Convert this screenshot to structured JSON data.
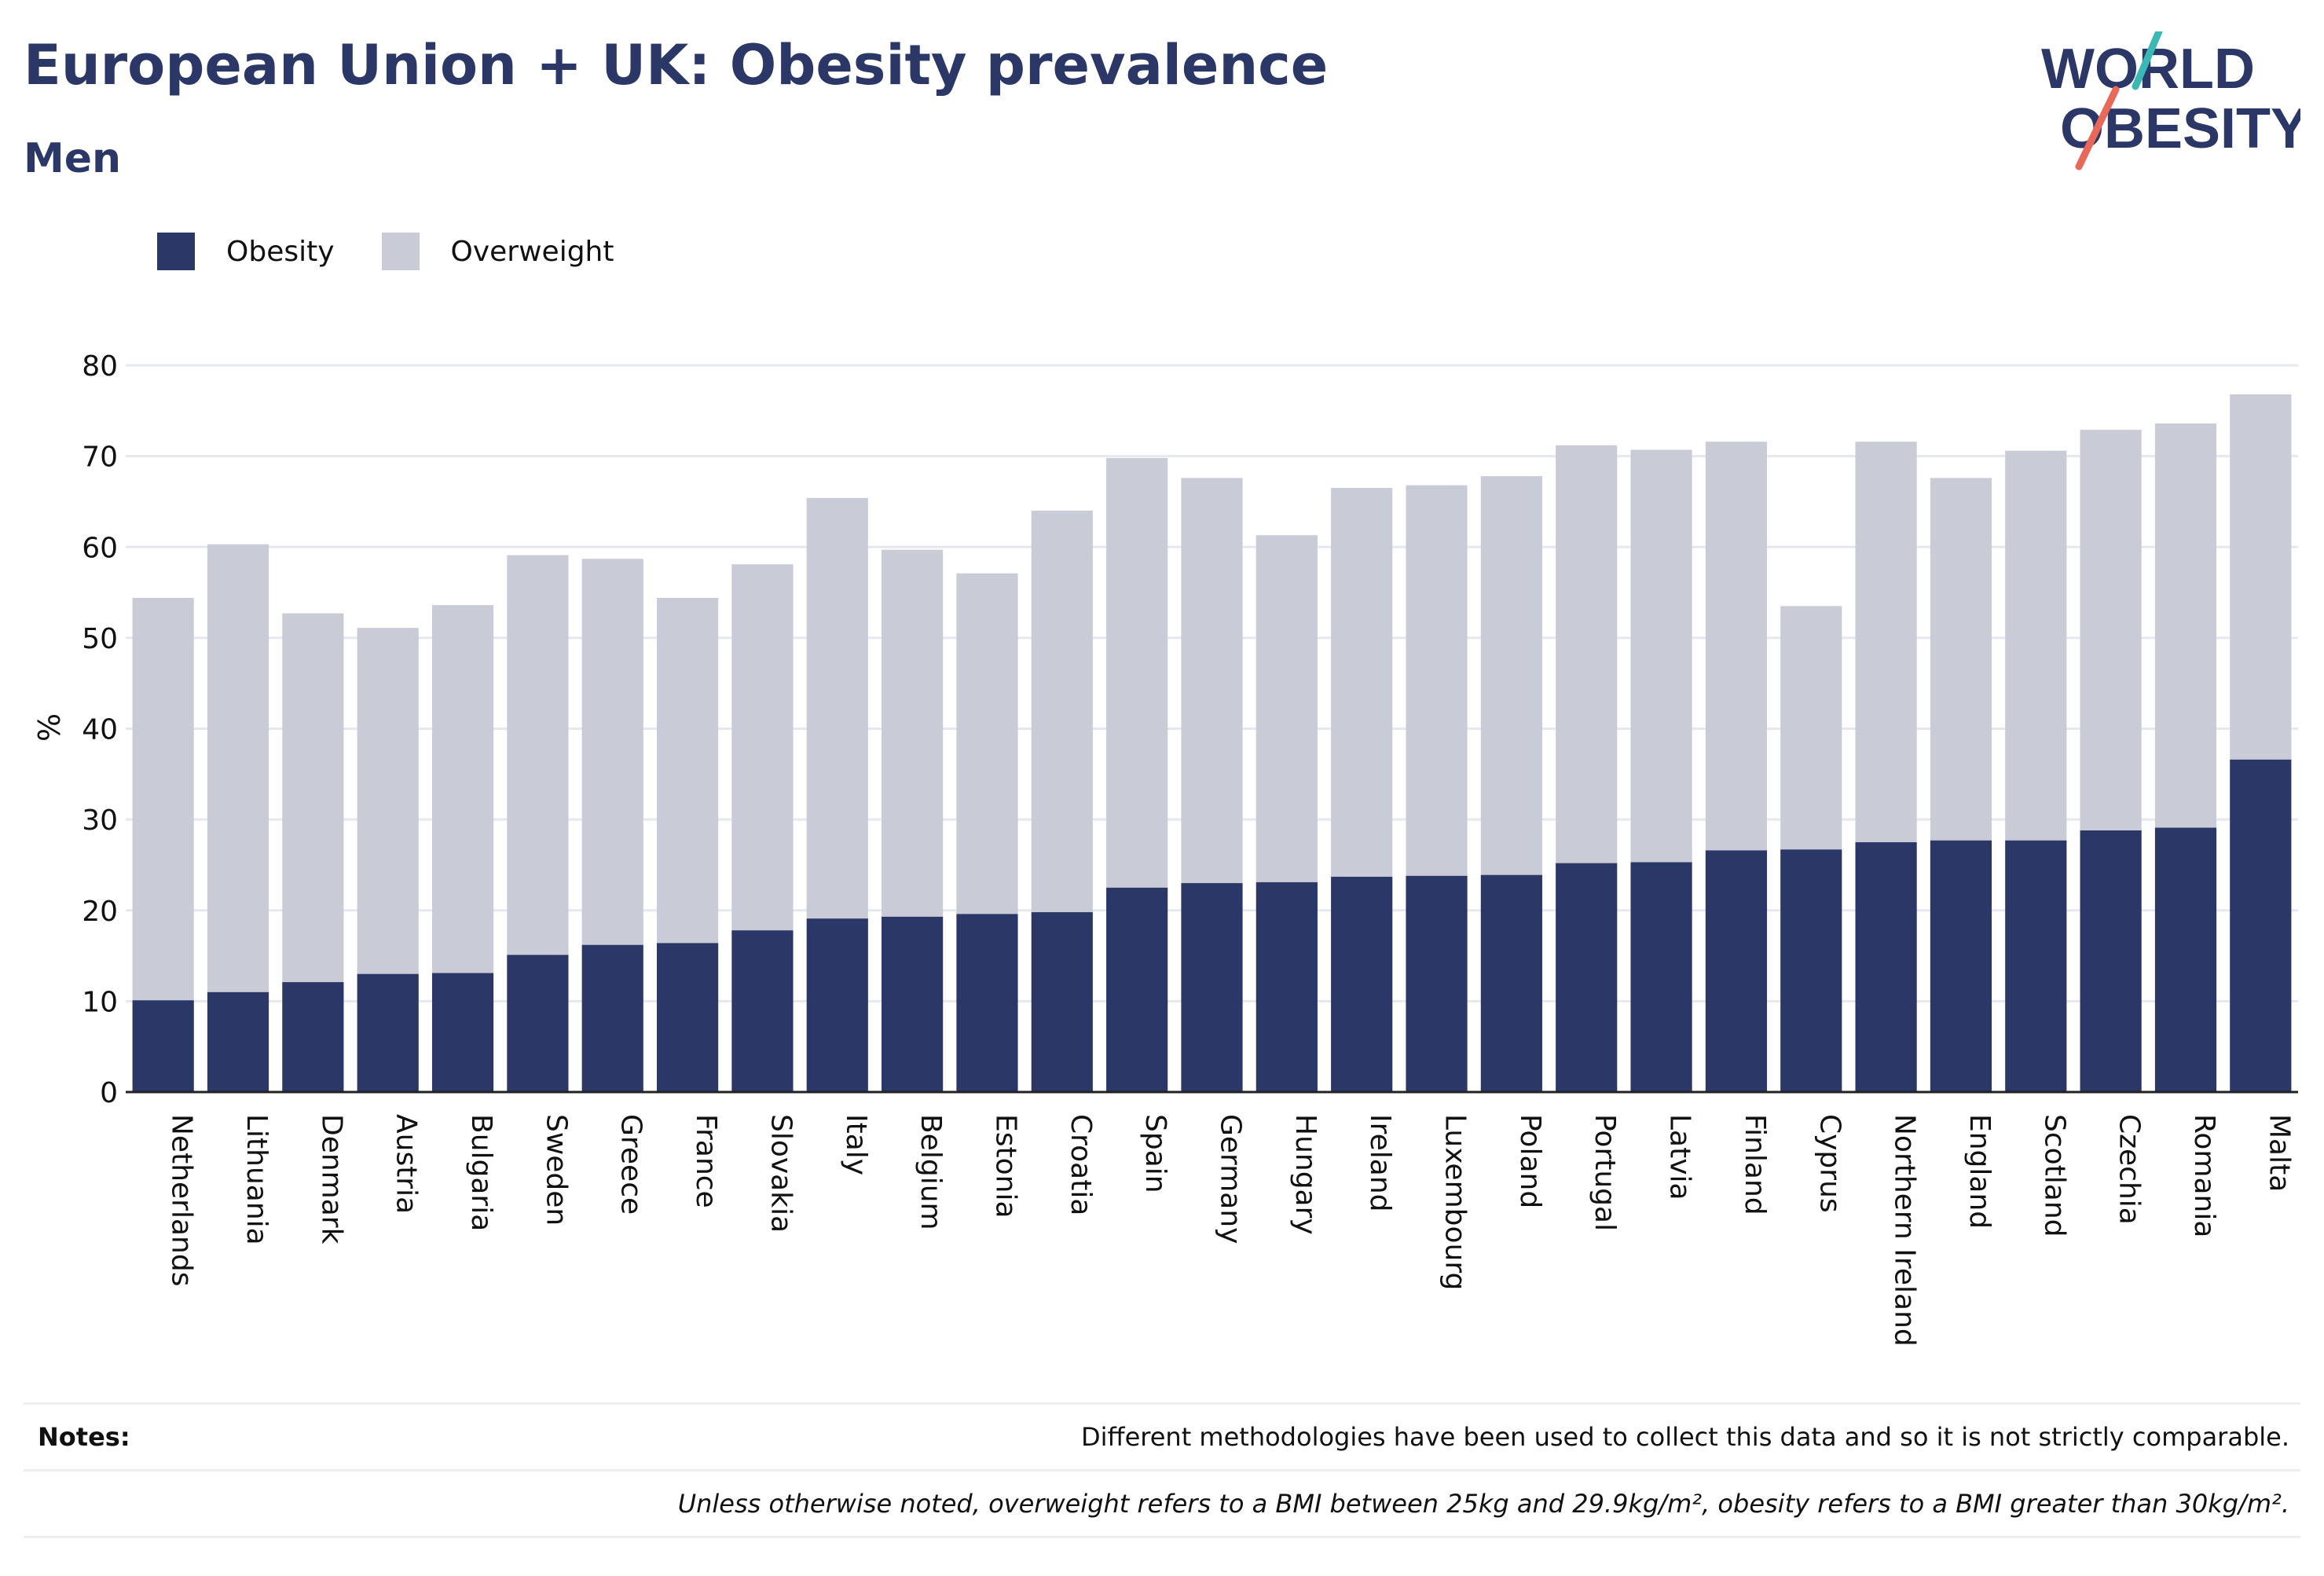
{
  "header": {
    "title": "European Union + UK: Obesity prevalence",
    "subtitle": "Men",
    "logo_line1": "WORLD",
    "logo_line2": "OBESITY"
  },
  "colors": {
    "obesity": "#2b3767",
    "overweight": "#c9cbd7",
    "grid": "#e6e8ef",
    "axis": "#222222",
    "logo_teal": "#3ab8b5",
    "logo_coral": "#e8685a"
  },
  "legend": [
    {
      "label": "Obesity",
      "color": "#2b3767"
    },
    {
      "label": "Overweight",
      "color": "#c9cbd7"
    }
  ],
  "chart_data": {
    "type": "bar",
    "stacked": true,
    "ylabel": "%",
    "ylim": [
      0,
      80
    ],
    "yticks": [
      0,
      10,
      20,
      30,
      40,
      50,
      60,
      70,
      80
    ],
    "grid": true,
    "legend_position": "top-left",
    "categories": [
      "Netherlands",
      "Lithuania",
      "Denmark",
      "Austria",
      "Bulgaria",
      "Sweden",
      "Greece",
      "France",
      "Slovakia",
      "Italy",
      "Belgium",
      "Estonia",
      "Croatia",
      "Spain",
      "Germany",
      "Hungary",
      "Ireland",
      "Luxembourg",
      "Poland",
      "Portugal",
      "Latvia",
      "Finland",
      "Cyprus",
      "Northern Ireland",
      "England",
      "Scotland",
      "Czechia",
      "Romania",
      "Malta"
    ],
    "series": [
      {
        "name": "Obesity",
        "values": [
          10.1,
          11.0,
          12.1,
          13.0,
          13.1,
          15.1,
          16.2,
          16.4,
          17.8,
          19.1,
          19.3,
          19.6,
          19.8,
          22.5,
          23.0,
          23.1,
          23.7,
          23.8,
          23.9,
          25.2,
          25.3,
          26.6,
          26.7,
          27.5,
          27.7,
          27.7,
          28.8,
          29.1,
          36.6
        ]
      },
      {
        "name": "Overweight",
        "values": [
          44.3,
          49.3,
          40.6,
          38.1,
          40.5,
          44.0,
          42.5,
          38.0,
          40.3,
          46.3,
          40.4,
          37.5,
          44.2,
          47.3,
          44.6,
          38.2,
          42.8,
          43.0,
          43.9,
          46.0,
          45.4,
          45.0,
          26.8,
          44.1,
          39.9,
          42.9,
          44.1,
          44.5,
          40.2
        ]
      }
    ]
  },
  "notes": {
    "label": "Notes:",
    "text1": "Different methodologies have been used to collect this data and so it is not strictly comparable.",
    "text2": "Unless otherwise noted, overweight refers to a BMI between 25kg and 29.9kg/m², obesity refers to a BMI greater than 30kg/m²."
  }
}
